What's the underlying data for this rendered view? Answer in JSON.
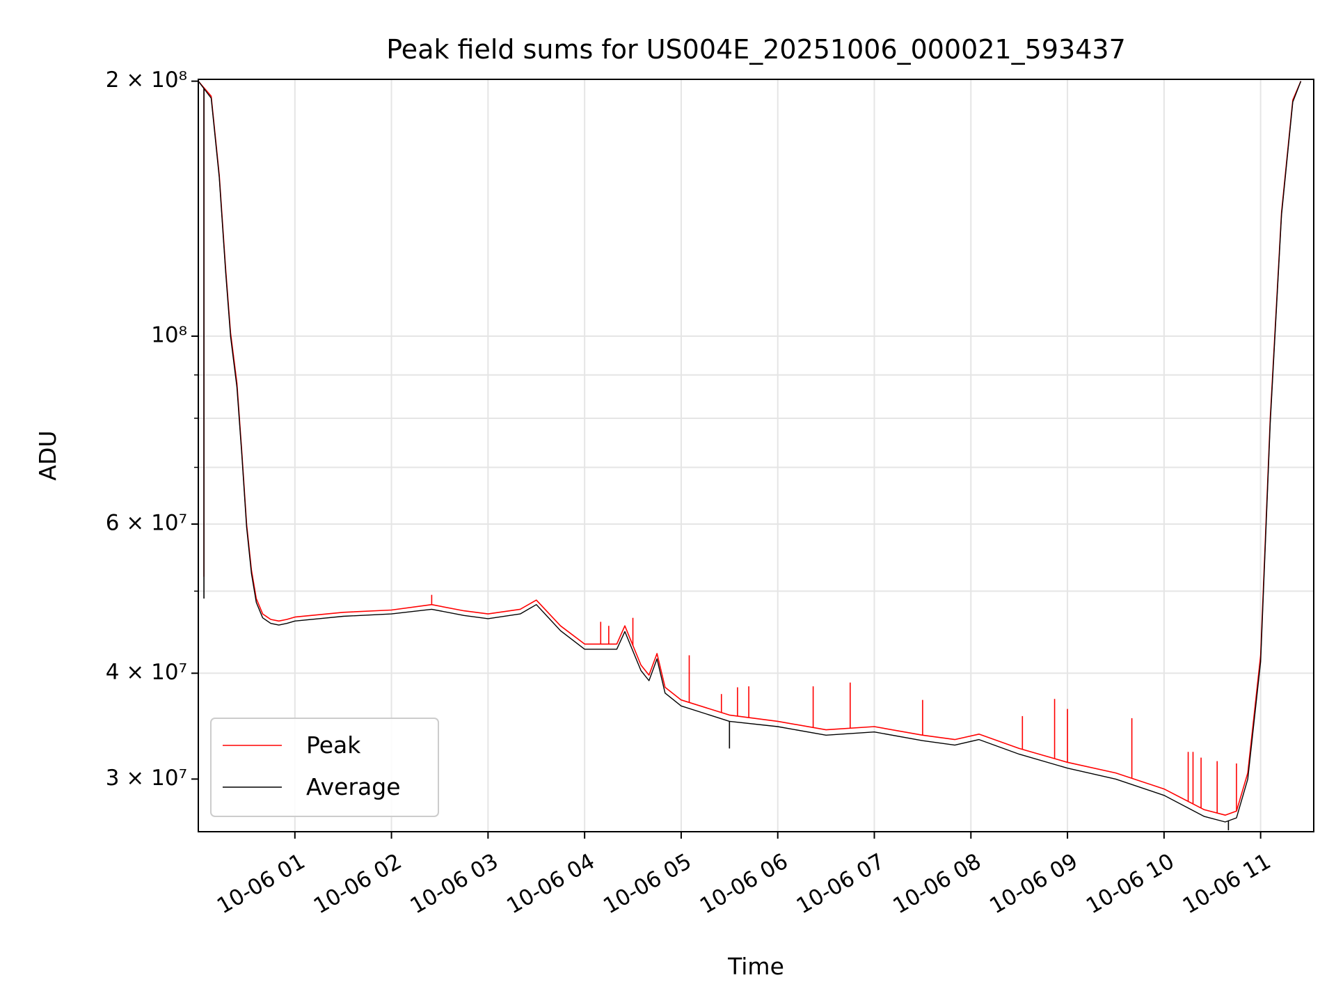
{
  "chart_data": {
    "type": "line",
    "title": "Peak field sums for US004E_20251006_000021_593437",
    "xlabel": "Time",
    "ylabel": "ADU",
    "yscale": "log",
    "ylim": [
      26000000,
      201000000
    ],
    "xlim": [
      "2025-10-06T00:00:00",
      "2025-10-06T11:33:00"
    ],
    "grid": true,
    "legend_position": "lower-left",
    "x_tick_labels": [
      "10-06 01",
      "10-06 02",
      "10-06 03",
      "10-06 04",
      "10-06 05",
      "10-06 06",
      "10-06 07",
      "10-06 08",
      "10-06 09",
      "10-06 10",
      "10-06 11"
    ],
    "y_tick_labels": [
      {
        "value": 200000000,
        "label": "2 × 10⁸"
      },
      {
        "value": 100000000,
        "label": "10⁸"
      },
      {
        "value": 60000000,
        "label": "6 × 10⁷"
      },
      {
        "value": 40000000,
        "label": "4 × 10⁷"
      },
      {
        "value": 30000000,
        "label": "3 × 10⁷"
      }
    ],
    "series": [
      {
        "name": "Peak",
        "color": "#ff0000",
        "x": [
          "2025-10-06T00:00",
          "2025-10-06T00:08",
          "2025-10-06T00:13",
          "2025-10-06T00:17",
          "2025-10-06T00:20",
          "2025-10-06T00:24",
          "2025-10-06T00:27",
          "2025-10-06T00:30",
          "2025-10-06T00:33",
          "2025-10-06T00:36",
          "2025-10-06T00:40",
          "2025-10-06T00:45",
          "2025-10-06T00:50",
          "2025-10-06T00:55",
          "2025-10-06T01:00",
          "2025-10-06T01:15",
          "2025-10-06T01:30",
          "2025-10-06T02:00",
          "2025-10-06T02:25",
          "2025-10-06T02:45",
          "2025-10-06T03:00",
          "2025-10-06T03:20",
          "2025-10-06T03:30",
          "2025-10-06T03:45",
          "2025-10-06T04:00",
          "2025-10-06T04:20",
          "2025-10-06T04:25",
          "2025-10-06T04:35",
          "2025-10-06T04:40",
          "2025-10-06T04:45",
          "2025-10-06T04:50",
          "2025-10-06T05:00",
          "2025-10-06T05:30",
          "2025-10-06T06:00",
          "2025-10-06T06:30",
          "2025-10-06T07:00",
          "2025-10-06T07:30",
          "2025-10-06T07:50",
          "2025-10-06T08:05",
          "2025-10-06T08:30",
          "2025-10-06T09:00",
          "2025-10-06T09:30",
          "2025-10-06T10:00",
          "2025-10-06T10:25",
          "2025-10-06T10:38",
          "2025-10-06T10:45",
          "2025-10-06T10:52",
          "2025-10-06T11:00",
          "2025-10-06T11:06",
          "2025-10-06T11:13",
          "2025-10-06T11:20",
          "2025-10-06T11:25"
        ],
        "y": [
          200000000,
          192000000,
          155000000,
          120000000,
          101000000,
          88000000,
          73000000,
          60000000,
          53000000,
          49000000,
          47000000,
          46300000,
          46100000,
          46300000,
          46600000,
          46900000,
          47200000,
          47500000,
          48200000,
          47400000,
          47000000,
          47600000,
          48800000,
          45500000,
          43300000,
          43300000,
          45500000,
          40900000,
          39800000,
          42200000,
          38500000,
          37200000,
          35700000,
          35100000,
          34300000,
          34600000,
          33800000,
          33400000,
          33900000,
          32600000,
          31400000,
          30500000,
          29200000,
          27600000,
          27200000,
          27500000,
          30500000,
          42000000,
          80000000,
          140000000,
          190000000,
          200000000
        ],
        "spikes": [
          {
            "x": "2025-10-06T00:03:30",
            "y": 52000000
          },
          {
            "x": "2025-10-06T02:25",
            "y": 49500000
          },
          {
            "x": "2025-10-06T04:10",
            "y": 46000000
          },
          {
            "x": "2025-10-06T04:15",
            "y": 45500000
          },
          {
            "x": "2025-10-06T04:30",
            "y": 46500000
          },
          {
            "x": "2025-10-06T05:05",
            "y": 42000000
          },
          {
            "x": "2025-10-06T05:25",
            "y": 37800000
          },
          {
            "x": "2025-10-06T05:35",
            "y": 38500000
          },
          {
            "x": "2025-10-06T05:42",
            "y": 38600000
          },
          {
            "x": "2025-10-06T06:22",
            "y": 38600000
          },
          {
            "x": "2025-10-06T06:45",
            "y": 39000000
          },
          {
            "x": "2025-10-06T07:30",
            "y": 37200000
          },
          {
            "x": "2025-10-06T08:32",
            "y": 35600000
          },
          {
            "x": "2025-10-06T08:52",
            "y": 37300000
          },
          {
            "x": "2025-10-06T09:00",
            "y": 36300000
          },
          {
            "x": "2025-10-06T09:40",
            "y": 35400000
          },
          {
            "x": "2025-10-06T10:15",
            "y": 32300000
          },
          {
            "x": "2025-10-06T10:18",
            "y": 32300000
          },
          {
            "x": "2025-10-06T10:23",
            "y": 31800000
          },
          {
            "x": "2025-10-06T10:33",
            "y": 31500000
          },
          {
            "x": "2025-10-06T10:45",
            "y": 31300000
          }
        ]
      },
      {
        "name": "Average",
        "color": "#000000",
        "x": [
          "2025-10-06T00:00",
          "2025-10-06T00:08",
          "2025-10-06T00:13",
          "2025-10-06T00:17",
          "2025-10-06T00:20",
          "2025-10-06T00:24",
          "2025-10-06T00:27",
          "2025-10-06T00:30",
          "2025-10-06T00:33",
          "2025-10-06T00:36",
          "2025-10-06T00:40",
          "2025-10-06T00:45",
          "2025-10-06T00:50",
          "2025-10-06T00:55",
          "2025-10-06T01:00",
          "2025-10-06T01:15",
          "2025-10-06T01:30",
          "2025-10-06T02:00",
          "2025-10-06T02:25",
          "2025-10-06T02:45",
          "2025-10-06T03:00",
          "2025-10-06T03:20",
          "2025-10-06T03:30",
          "2025-10-06T03:45",
          "2025-10-06T04:00",
          "2025-10-06T04:20",
          "2025-10-06T04:25",
          "2025-10-06T04:35",
          "2025-10-06T04:40",
          "2025-10-06T04:45",
          "2025-10-06T04:50",
          "2025-10-06T05:00",
          "2025-10-06T05:30",
          "2025-10-06T06:00",
          "2025-10-06T06:30",
          "2025-10-06T07:00",
          "2025-10-06T07:30",
          "2025-10-06T07:50",
          "2025-10-06T08:05",
          "2025-10-06T08:30",
          "2025-10-06T09:00",
          "2025-10-06T09:30",
          "2025-10-06T10:00",
          "2025-10-06T10:25",
          "2025-10-06T10:38",
          "2025-10-06T10:45",
          "2025-10-06T10:52",
          "2025-10-06T11:00",
          "2025-10-06T11:06",
          "2025-10-06T11:13",
          "2025-10-06T11:20",
          "2025-10-06T11:25"
        ],
        "y": [
          200000000,
          191000000,
          154000000,
          119000000,
          100000000,
          87000000,
          72500000,
          59500000,
          52500000,
          48500000,
          46500000,
          45800000,
          45600000,
          45800000,
          46100000,
          46400000,
          46700000,
          47000000,
          47600000,
          46800000,
          46400000,
          47000000,
          48200000,
          44900000,
          42700000,
          42700000,
          44800000,
          40300000,
          39200000,
          41600000,
          37900000,
          36600000,
          35100000,
          34600000,
          33800000,
          34100000,
          33300000,
          32900000,
          33400000,
          32100000,
          30900000,
          30000000,
          28700000,
          27100000,
          26700000,
          27000000,
          30000000,
          41300000,
          79000000,
          139000000,
          189000000,
          200000000
        ],
        "spikes": [
          {
            "x": "2025-10-06T00:03:30",
            "y": 49000000
          },
          {
            "x": "2025-10-06T05:30",
            "y": 32600000
          },
          {
            "x": "2025-10-06T10:40",
            "y": 26100000
          }
        ]
      }
    ]
  }
}
